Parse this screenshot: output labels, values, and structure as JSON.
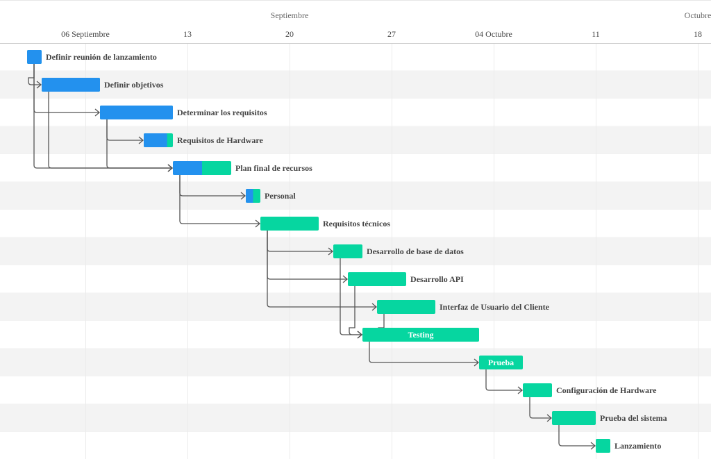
{
  "chart_data": {
    "type": "gantt",
    "year": 2021,
    "axis": {
      "months": [
        {
          "label": "Septiembre",
          "date": "2021-09-20"
        },
        {
          "label": "Octubre",
          "date": "2021-10-18"
        }
      ],
      "ticks": [
        {
          "label": "06 Septiembre",
          "date": "2021-09-06"
        },
        {
          "label": "13",
          "date": "2021-09-13"
        },
        {
          "label": "20",
          "date": "2021-09-20"
        },
        {
          "label": "27",
          "date": "2021-09-27"
        },
        {
          "label": "04 Octubre",
          "date": "2021-10-04"
        },
        {
          "label": "11",
          "date": "2021-10-11"
        },
        {
          "label": "18",
          "date": "2021-10-18"
        }
      ]
    },
    "colors": {
      "done": "#2391ee",
      "remaining": "#06d6a0",
      "dependency": "#555555",
      "row_alt": "#f3f3f3",
      "grid": "#ebebeb",
      "label": "#444444"
    },
    "tasks": [
      {
        "name": "Definir reunión de lanzamiento",
        "start": "2021-09-02",
        "end": "2021-09-03",
        "progress": 1.0,
        "label_inside": false
      },
      {
        "name": "Definir objetivos",
        "start": "2021-09-03",
        "end": "2021-09-07",
        "progress": 1.0,
        "label_inside": false
      },
      {
        "name": "Determinar los requisitos",
        "start": "2021-09-07",
        "end": "2021-09-12",
        "progress": 1.0,
        "label_inside": false
      },
      {
        "name": "Requisitos de Hardware",
        "start": "2021-09-10",
        "end": "2021-09-12",
        "progress": 0.8,
        "label_inside": false
      },
      {
        "name": "Plan final de recursos",
        "start": "2021-09-12",
        "end": "2021-09-16",
        "progress": 0.5,
        "label_inside": false
      },
      {
        "name": "Personal",
        "start": "2021-09-17",
        "end": "2021-09-18",
        "progress": 0.5,
        "label_inside": false
      },
      {
        "name": "Requisitos técnicos",
        "start": "2021-09-18",
        "end": "2021-09-22",
        "progress": 0.0,
        "label_inside": false
      },
      {
        "name": "Desarrollo de base de datos",
        "start": "2021-09-23",
        "end": "2021-09-25",
        "progress": 0.0,
        "label_inside": false
      },
      {
        "name": "Desarrollo API",
        "start": "2021-09-24",
        "end": "2021-09-28",
        "progress": 0.0,
        "label_inside": false
      },
      {
        "name": "Interfaz de Usuario del Cliente",
        "start": "2021-09-26",
        "end": "2021-09-30",
        "progress": 0.0,
        "label_inside": false
      },
      {
        "name": "Testing",
        "start": "2021-09-25",
        "end": "2021-10-03",
        "progress": 0.0,
        "label_inside": true
      },
      {
        "name": "Prueba",
        "start": "2021-10-03",
        "end": "2021-10-06",
        "progress": 0.0,
        "label_inside": true
      },
      {
        "name": "Configuración de Hardware",
        "start": "2021-10-06",
        "end": "2021-10-08",
        "progress": 0.0,
        "label_inside": false
      },
      {
        "name": "Prueba del sistema",
        "start": "2021-10-08",
        "end": "2021-10-11",
        "progress": 0.0,
        "label_inside": false
      },
      {
        "name": "Lanzamiento",
        "start": "2021-10-11",
        "end": "2021-10-12",
        "progress": 0.0,
        "label_inside": false
      }
    ],
    "dependencies": [
      {
        "from": 0,
        "to": 1
      },
      {
        "from": 0,
        "to": 2
      },
      {
        "from": 0,
        "to": 4
      },
      {
        "from": 1,
        "to": 4
      },
      {
        "from": 2,
        "to": 3
      },
      {
        "from": 2,
        "to": 4
      },
      {
        "from": 4,
        "to": 5
      },
      {
        "from": 4,
        "to": 6
      },
      {
        "from": 6,
        "to": 7
      },
      {
        "from": 6,
        "to": 8
      },
      {
        "from": 6,
        "to": 9
      },
      {
        "from": 7,
        "to": 10
      },
      {
        "from": 8,
        "to": 10
      },
      {
        "from": 9,
        "to": 10
      },
      {
        "from": 10,
        "to": 11
      },
      {
        "from": 11,
        "to": 12
      },
      {
        "from": 12,
        "to": 13
      },
      {
        "from": 13,
        "to": 14
      }
    ]
  }
}
